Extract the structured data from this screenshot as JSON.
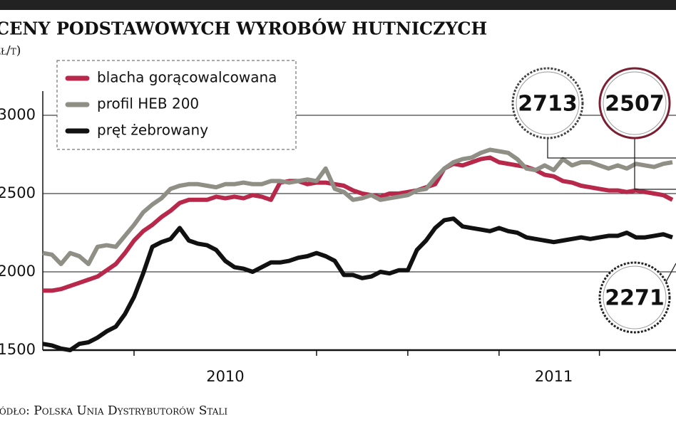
{
  "chart_data": {
    "type": "line",
    "title": "CENY PODSTAWOWYCH WYROBÓW HUTNICZYCH",
    "unit": "(zł/t)",
    "source": "Źródło: Polska Unia Dystrybutorów Stali",
    "categories": [
      null,
      null,
      null,
      null,
      null,
      null,
      null,
      null,
      null,
      null,
      null,
      null,
      null,
      null,
      null,
      null,
      null,
      null,
      null,
      null,
      "2010",
      null,
      null,
      null,
      null,
      null,
      null,
      null,
      null,
      null,
      null,
      null,
      null,
      null,
      null,
      null,
      null,
      null,
      null,
      null,
      null,
      null,
      null,
      null,
      null,
      null,
      null,
      null,
      null,
      null,
      null,
      null,
      null,
      null,
      null,
      null,
      "2011",
      null,
      null,
      null,
      null,
      null,
      null,
      null,
      null,
      null,
      null,
      null,
      null,
      null
    ],
    "series": [
      {
        "name": "blacha gorącowalcowana",
        "color": "#b8284a",
        "values": [
          1880,
          1880,
          1890,
          1910,
          1930,
          1950,
          1970,
          2010,
          2050,
          2120,
          2200,
          2260,
          2300,
          2350,
          2390,
          2440,
          2460,
          2460,
          2460,
          2480,
          2470,
          2480,
          2470,
          2490,
          2480,
          2460,
          2570,
          2580,
          2580,
          2560,
          2570,
          2570,
          2560,
          2550,
          2520,
          2500,
          2490,
          2480,
          2500,
          2500,
          2510,
          2520,
          2540,
          2560,
          2660,
          2690,
          2680,
          2700,
          2720,
          2730,
          2700,
          2690,
          2680,
          2670,
          2650,
          2620,
          2610,
          2580,
          2570,
          2550,
          2540,
          2530,
          2520,
          2520,
          2510,
          2520,
          2510,
          2500,
          2490,
          2460
        ]
      },
      {
        "name": "profil HEB 200",
        "color": "#8f8f85",
        "values": [
          2120,
          2110,
          2050,
          2120,
          2100,
          2050,
          2160,
          2170,
          2160,
          2230,
          2300,
          2380,
          2430,
          2470,
          2530,
          2550,
          2560,
          2560,
          2550,
          2540,
          2560,
          2560,
          2570,
          2560,
          2560,
          2580,
          2580,
          2570,
          2580,
          2590,
          2580,
          2660,
          2530,
          2510,
          2460,
          2470,
          2490,
          2460,
          2470,
          2480,
          2490,
          2520,
          2530,
          2600,
          2660,
          2700,
          2720,
          2730,
          2760,
          2780,
          2770,
          2760,
          2720,
          2660,
          2650,
          2680,
          2650,
          2720,
          2680,
          2700,
          2700,
          2680,
          2660,
          2680,
          2660,
          2690,
          2680,
          2670,
          2690,
          2700
        ]
      },
      {
        "name": "pręt żebrowany",
        "color": "#111111",
        "values": [
          1540,
          1530,
          1510,
          1500,
          1540,
          1550,
          1580,
          1620,
          1650,
          1730,
          1840,
          1990,
          2160,
          2190,
          2210,
          2280,
          2200,
          2180,
          2170,
          2140,
          2070,
          2030,
          2020,
          2000,
          2030,
          2060,
          2060,
          2070,
          2090,
          2100,
          2120,
          2100,
          2070,
          1980,
          1980,
          1960,
          1970,
          2000,
          1990,
          2010,
          2010,
          2140,
          2200,
          2280,
          2330,
          2340,
          2290,
          2280,
          2270,
          2260,
          2280,
          2260,
          2250,
          2220,
          2210,
          2200,
          2190,
          2200,
          2210,
          2220,
          2210,
          2220,
          2230,
          2230,
          2250,
          2220,
          2220,
          2230,
          2240,
          2220
        ]
      }
    ],
    "annotations": [
      "2713",
      "2507",
      "2271"
    ],
    "ylim": [
      1500,
      3000
    ],
    "yticks": [
      1500,
      2000,
      2500,
      3000
    ],
    "grid": true,
    "legend": "upper left"
  }
}
